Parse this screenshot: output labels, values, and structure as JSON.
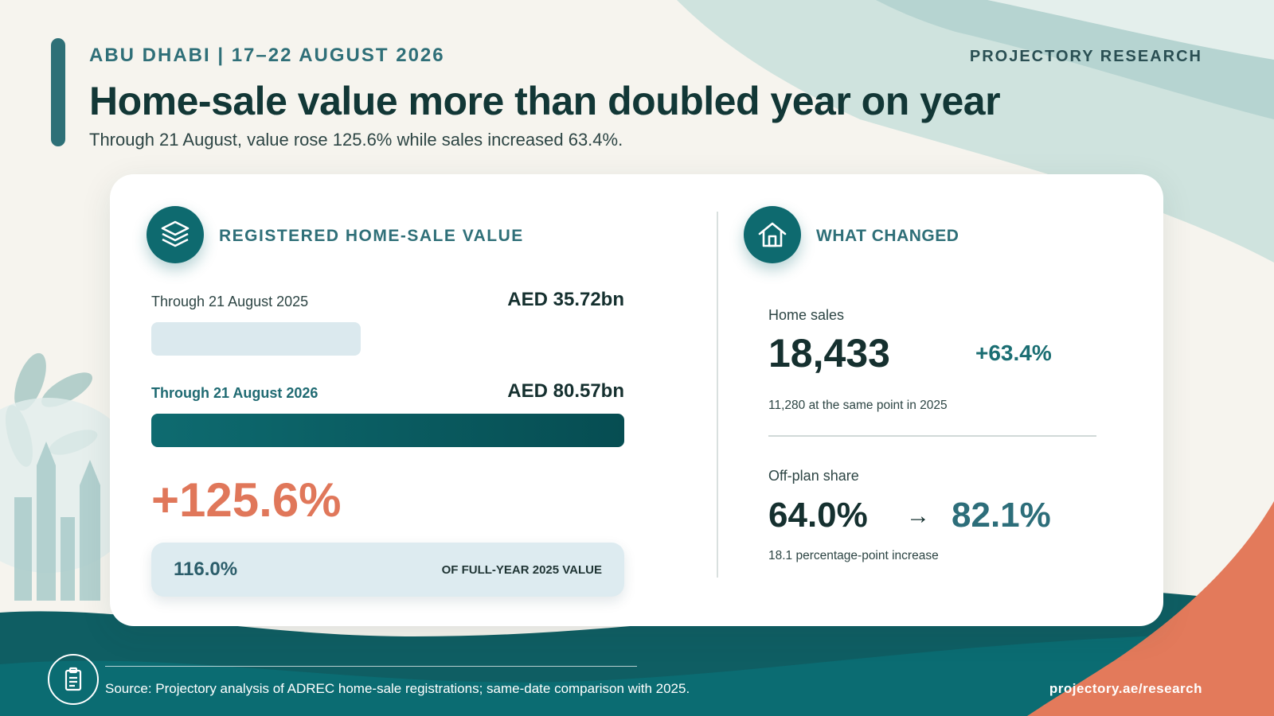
{
  "header": {
    "eyebrow": "ABU DHABI | 17–22 AUGUST 2026",
    "brand": "PROJECTORY RESEARCH",
    "headline": "Home-sale value more than doubled year on year",
    "subhead": "Through 21 August, value rose 125.6% while sales increased 63.4%."
  },
  "value_panel": {
    "icon": "layers-icon",
    "title": "REGISTERED HOME-SALE VALUE",
    "rows": [
      {
        "label": "Through 21 August 2025",
        "value": "AED 35.72bn",
        "share_of_max": 0.4433
      },
      {
        "label": "Through 21 August 2026",
        "value": "AED 80.57bn",
        "share_of_max": 1.0
      }
    ],
    "change": "+125.6%",
    "full_year_share": "116.0%",
    "full_year_label": "OF FULL-YEAR 2025 VALUE"
  },
  "changes_panel": {
    "icon": "house-icon",
    "title": "WHAT CHANGED",
    "home_sales": {
      "label": "Home sales",
      "value": "18,433",
      "change": "+63.4%",
      "note": "11,280 at the same point in 2025"
    },
    "off_plan": {
      "label": "Off-plan share",
      "from": "64.0%",
      "arrow": "→",
      "to": "82.1%",
      "note": "18.1 percentage-point increase"
    }
  },
  "footer": {
    "icon": "clipboard-icon",
    "source": "Source: Projectory analysis of ADREC home-sale registrations; same-date comparison with 2025.",
    "link": "projectory.ae/research"
  },
  "colors": {
    "teal_dark": "#0e6a6f",
    "teal_label": "#2f6f78",
    "coral": "#e0775a",
    "bar_light": "#dbe9ee"
  }
}
